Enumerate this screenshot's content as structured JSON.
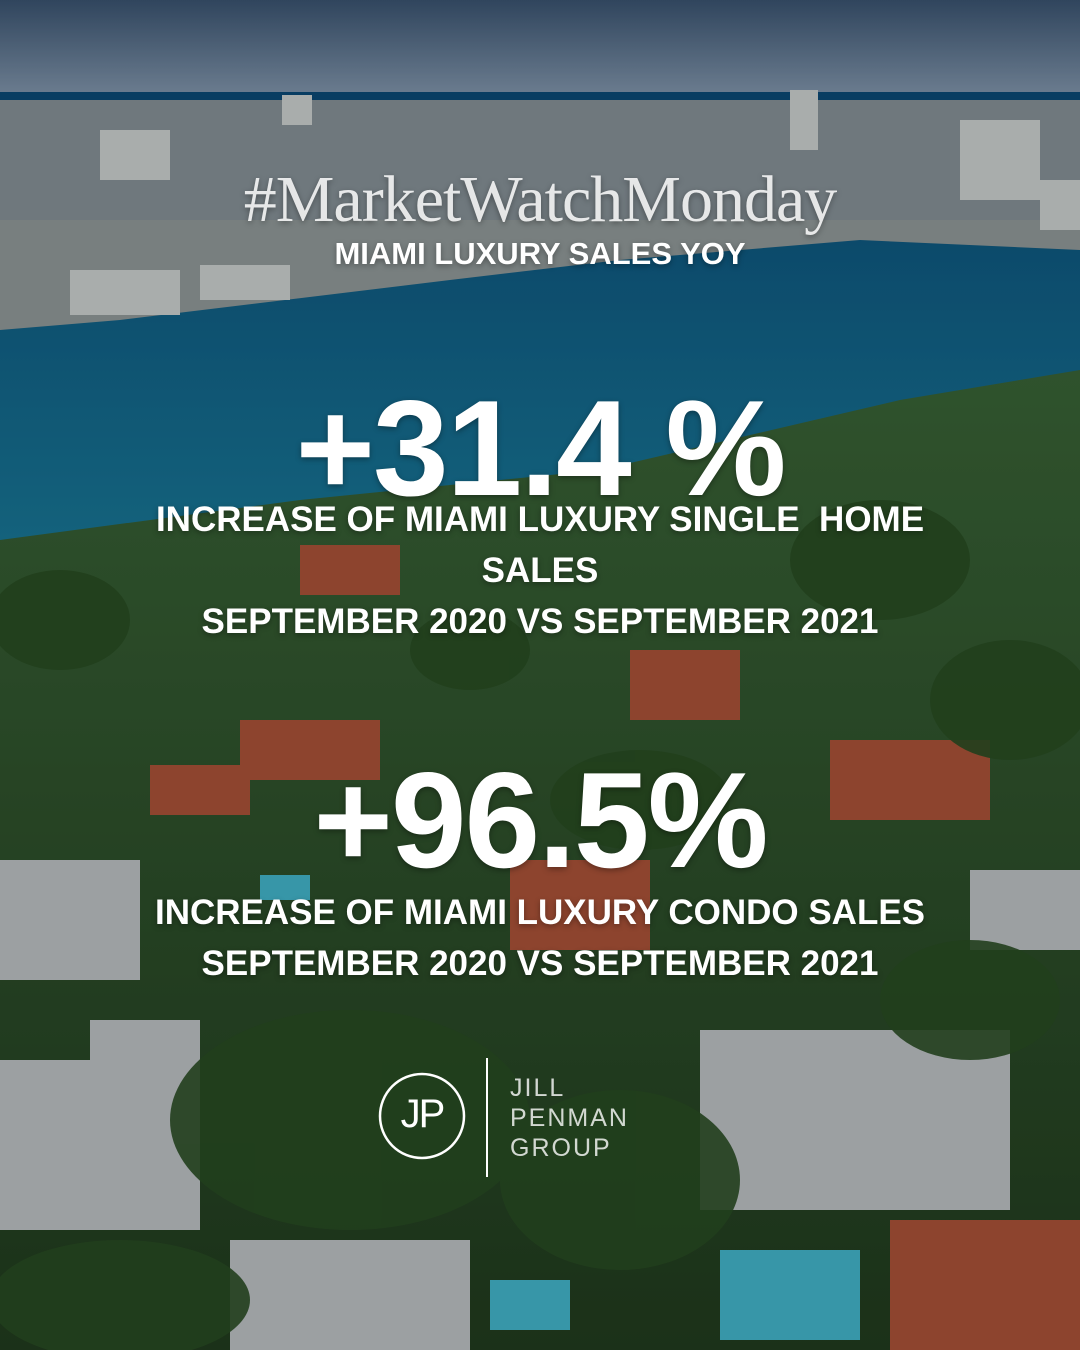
{
  "header": {
    "hashtag": "#MarketWatchMonday",
    "subtitle": "MIAMI LUXURY SALES YOY"
  },
  "stats": [
    {
      "value": "+31.4 %",
      "lines": [
        "INCREASE OF MIAMI LUXURY SINGLE  HOME",
        "SALES",
        "SEPTEMBER 2020 VS SEPTEMBER 2021"
      ]
    },
    {
      "value": "+96.5%",
      "lines": [
        "INCREASE OF MIAMI LUXURY CONDO SALES",
        "SEPTEMBER 2020 VS SEPTEMBER 2021"
      ]
    }
  ],
  "logo": {
    "monogram": "JP",
    "lines": [
      "JILL",
      "PENMAN",
      "GROUP"
    ]
  }
}
